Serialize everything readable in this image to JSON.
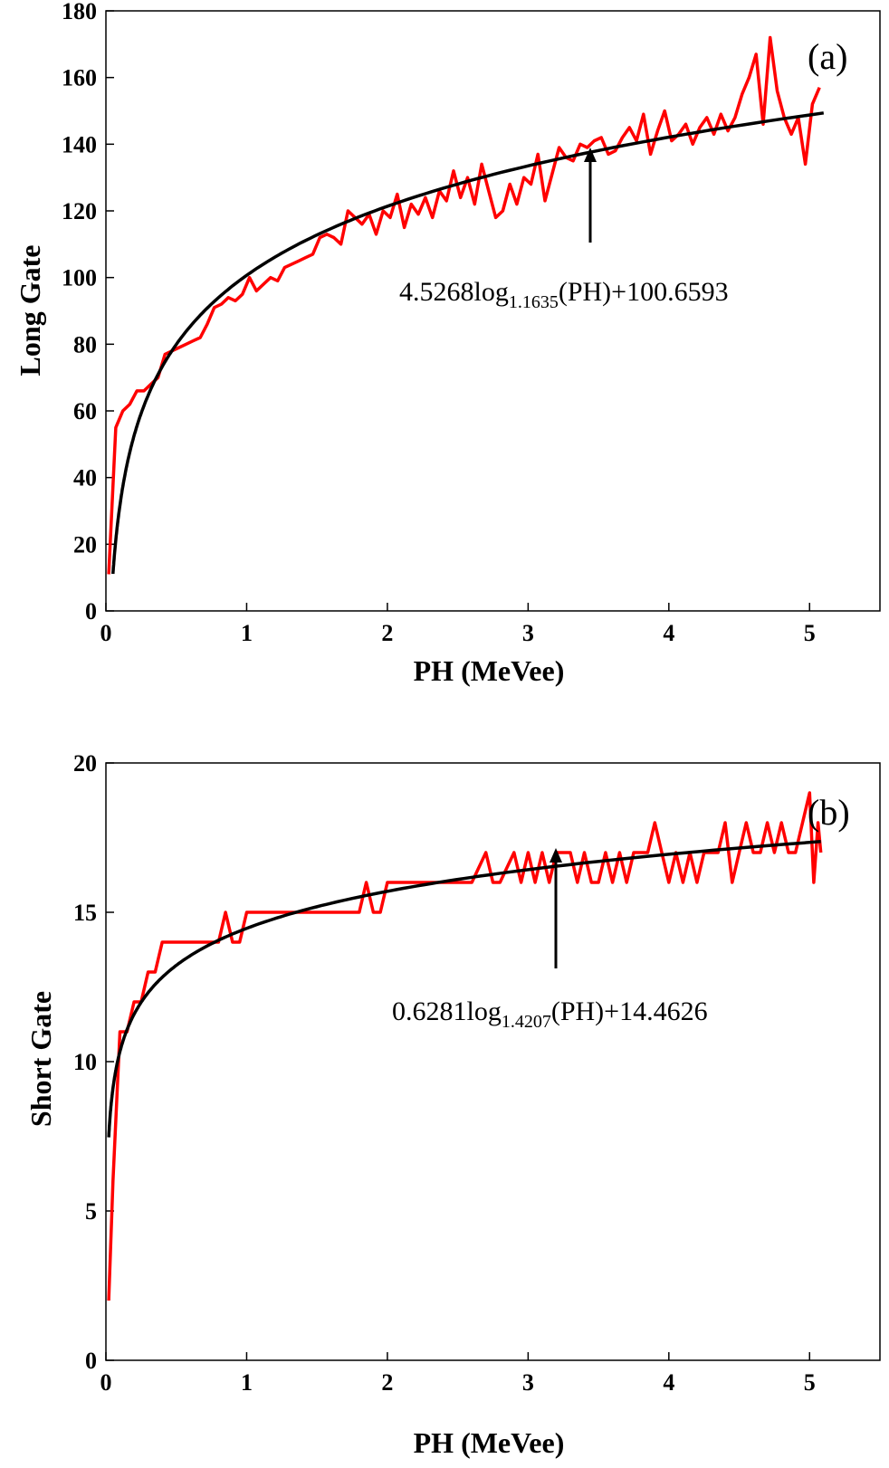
{
  "chart_data": [
    {
      "type": "line",
      "panel_label": "(a)",
      "xlabel": "PH (MeVee)",
      "ylabel": "Long Gate",
      "xlim": [
        0,
        5.5
      ],
      "ylim": [
        0,
        180
      ],
      "x_ticks": [
        "0",
        "1",
        "2",
        "3",
        "4",
        "5"
      ],
      "y_ticks": [
        "0",
        "20",
        "40",
        "60",
        "80",
        "100",
        "120",
        "140",
        "160",
        "180"
      ],
      "annotation": {
        "prefix": "4.5268log",
        "base": "1.1635",
        "suffix": "(PH)+100.6593",
        "arrow_x": 3.47,
        "arrow_y": 139
      },
      "fit": {
        "name": "fit",
        "color": "#000000",
        "a": 4.5268,
        "base": 1.1635,
        "c": 100.6593,
        "x_start": 0.05,
        "x_end": 5.1
      },
      "series": [
        {
          "name": "measured",
          "color": "#ff0000",
          "x": [
            0.02,
            0.07,
            0.12,
            0.17,
            0.22,
            0.27,
            0.32,
            0.37,
            0.42,
            0.47,
            0.52,
            0.57,
            0.62,
            0.67,
            0.72,
            0.77,
            0.82,
            0.87,
            0.92,
            0.97,
            1.02,
            1.07,
            1.12,
            1.17,
            1.22,
            1.27,
            1.32,
            1.37,
            1.42,
            1.47,
            1.52,
            1.57,
            1.62,
            1.67,
            1.72,
            1.77,
            1.82,
            1.87,
            1.92,
            1.97,
            2.02,
            2.07,
            2.12,
            2.17,
            2.22,
            2.27,
            2.32,
            2.37,
            2.42,
            2.47,
            2.52,
            2.57,
            2.62,
            2.67,
            2.72,
            2.77,
            2.82,
            2.87,
            2.92,
            2.97,
            3.02,
            3.07,
            3.12,
            3.17,
            3.22,
            3.27,
            3.32,
            3.37,
            3.42,
            3.47,
            3.52,
            3.57,
            3.62,
            3.67,
            3.72,
            3.77,
            3.82,
            3.87,
            3.92,
            3.97,
            4.02,
            4.07,
            4.12,
            4.17,
            4.22,
            4.27,
            4.32,
            4.37,
            4.42,
            4.47,
            4.52,
            4.57,
            4.62,
            4.67,
            4.72,
            4.77,
            4.82,
            4.87,
            4.92,
            4.97,
            5.02,
            5.07
          ],
          "values": [
            11,
            55,
            60,
            62,
            66,
            66,
            68,
            70,
            77,
            78,
            79,
            80,
            81,
            82,
            86,
            91,
            92,
            94,
            93,
            95,
            100,
            96,
            98,
            100,
            99,
            103,
            104,
            105,
            106,
            107,
            112,
            113,
            112,
            110,
            120,
            118,
            116,
            119,
            113,
            120,
            118,
            125,
            115,
            122,
            119,
            124,
            118,
            126,
            123,
            132,
            124,
            130,
            122,
            134,
            126,
            118,
            120,
            128,
            122,
            130,
            128,
            137,
            123,
            131,
            139,
            136,
            135,
            140,
            139,
            141,
            142,
            137,
            138,
            142,
            145,
            141,
            149,
            137,
            144,
            150,
            141,
            143,
            146,
            140,
            145,
            148,
            143,
            149,
            144,
            148,
            155,
            160,
            167,
            146,
            172,
            156,
            148,
            143,
            148,
            134,
            152,
            157
          ]
        }
      ]
    },
    {
      "type": "line",
      "panel_label": "(b)",
      "xlabel": "PH (MeVee)",
      "ylabel": "Short Gate",
      "xlim": [
        0,
        5.5
      ],
      "ylim": [
        0,
        20
      ],
      "x_ticks": [
        "0",
        "1",
        "2",
        "3",
        "4",
        "5"
      ],
      "y_ticks": [
        "0",
        "5",
        "10",
        "15",
        "20"
      ],
      "annotation": {
        "prefix": "0.6281log",
        "base": "1.4207",
        "suffix": "(PH)+14.4626",
        "arrow_x": 3.22,
        "arrow_y": 16.6
      },
      "fit": {
        "name": "fit",
        "color": "#000000",
        "a": 0.6281,
        "base": 1.4207,
        "c": 14.4626,
        "x_start": 0.02,
        "x_end": 5.08
      },
      "series": [
        {
          "name": "measured",
          "color": "#ff0000",
          "x": [
            0.02,
            0.05,
            0.1,
            0.15,
            0.2,
            0.25,
            0.3,
            0.35,
            0.4,
            0.45,
            0.5,
            0.55,
            0.6,
            0.65,
            0.7,
            0.75,
            0.8,
            0.85,
            0.9,
            0.95,
            1.0,
            1.1,
            1.2,
            1.3,
            1.4,
            1.5,
            1.6,
            1.7,
            1.8,
            1.85,
            1.9,
            1.95,
            2.0,
            2.1,
            2.2,
            2.3,
            2.4,
            2.5,
            2.6,
            2.7,
            2.75,
            2.8,
            2.9,
            2.95,
            3.0,
            3.05,
            3.1,
            3.15,
            3.2,
            3.25,
            3.3,
            3.35,
            3.4,
            3.45,
            3.5,
            3.55,
            3.6,
            3.65,
            3.7,
            3.75,
            3.8,
            3.85,
            3.9,
            3.95,
            4.0,
            4.05,
            4.1,
            4.15,
            4.2,
            4.25,
            4.3,
            4.35,
            4.4,
            4.45,
            4.5,
            4.55,
            4.6,
            4.65,
            4.7,
            4.75,
            4.8,
            4.85,
            4.9,
            4.95,
            5.0,
            5.03,
            5.06,
            5.08
          ],
          "values": [
            2,
            6,
            11,
            11,
            12,
            12,
            13,
            13,
            14,
            14,
            14,
            14,
            14,
            14,
            14,
            14,
            14,
            15,
            14,
            14,
            15,
            15,
            15,
            15,
            15,
            15,
            15,
            15,
            15,
            16,
            15,
            15,
            16,
            16,
            16,
            16,
            16,
            16,
            16,
            17,
            16,
            16,
            17,
            16,
            17,
            16,
            17,
            16,
            17,
            17,
            17,
            16,
            17,
            16,
            16,
            17,
            16,
            17,
            16,
            17,
            17,
            17,
            18,
            17,
            16,
            17,
            16,
            17,
            16,
            17,
            17,
            17,
            18,
            16,
            17,
            18,
            17,
            17,
            18,
            17,
            18,
            17,
            17,
            18,
            19,
            16,
            18,
            17
          ]
        }
      ]
    }
  ]
}
